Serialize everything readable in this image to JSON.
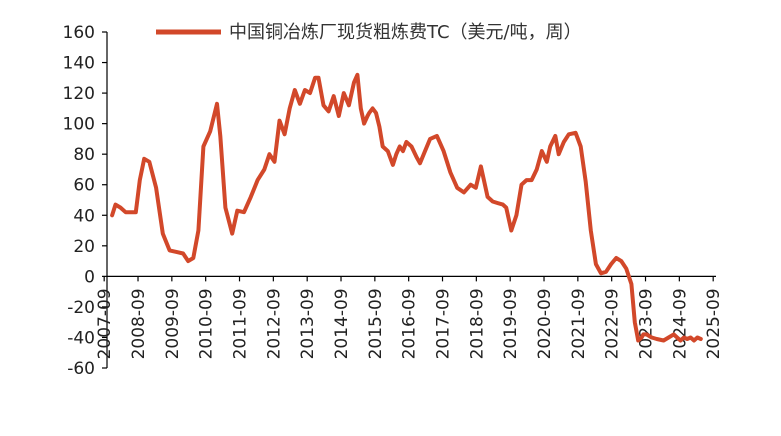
{
  "chart_data": {
    "type": "line",
    "legend": {
      "label": "中国铜冶炼厂现货粗炼费TC（美元/吨，周）",
      "position": "top"
    },
    "series": [
      {
        "name": "中国铜冶炼厂现货粗炼费TC（美元/吨，周）",
        "color": "#d2482a",
        "x": [
          2007.9,
          2008.0,
          2008.15,
          2008.3,
          2008.5,
          2008.6,
          2008.72,
          2008.85,
          2009.0,
          2009.2,
          2009.4,
          2009.6,
          2009.8,
          2010.0,
          2010.15,
          2010.3,
          2010.45,
          2010.6,
          2010.8,
          2011.0,
          2011.1,
          2011.25,
          2011.45,
          2011.6,
          2011.8,
          2012.0,
          2012.2,
          2012.4,
          2012.55,
          2012.7,
          2012.85,
          2013.0,
          2013.15,
          2013.3,
          2013.45,
          2013.6,
          2013.75,
          2013.9,
          2014.0,
          2014.15,
          2014.3,
          2014.45,
          2014.6,
          2014.75,
          2014.9,
          2015.05,
          2015.15,
          2015.25,
          2015.35,
          2015.45,
          2015.5,
          2015.6,
          2015.7,
          2015.8,
          2015.9,
          2016.05,
          2016.2,
          2016.3,
          2016.4,
          2016.5,
          2016.6,
          2016.75,
          2016.9,
          2017.0,
          2017.15,
          2017.3,
          2017.5,
          2017.7,
          2017.9,
          2018.1,
          2018.3,
          2018.5,
          2018.65,
          2018.8,
          2019.0,
          2019.15,
          2019.3,
          2019.45,
          2019.55,
          2019.7,
          2019.85,
          2020.0,
          2020.15,
          2020.3,
          2020.45,
          2020.6,
          2020.75,
          2020.85,
          2021.0,
          2021.1,
          2021.25,
          2021.4,
          2021.6,
          2021.75,
          2021.9,
          2022.05,
          2022.2,
          2022.35,
          2022.5,
          2022.65,
          2022.8,
          2022.95,
          2023.1,
          2023.25,
          2023.35,
          2023.45,
          2023.55,
          2023.6,
          2023.7,
          2023.85,
          2024.0,
          2024.2,
          2024.35,
          2024.5,
          2024.6,
          2024.7,
          2024.8,
          2024.9,
          2025.0,
          2025.1,
          2025.2,
          2025.3
        ],
        "values": [
          40,
          47,
          45,
          42,
          42,
          42,
          63,
          77,
          75,
          58,
          28,
          17,
          16,
          15,
          10,
          12,
          30,
          85,
          95,
          113,
          92,
          45,
          28,
          43,
          42,
          52,
          63,
          70,
          80,
          75,
          102,
          93,
          110,
          122,
          113,
          122,
          120,
          130,
          130,
          112,
          108,
          118,
          105,
          120,
          112,
          127,
          132,
          110,
          100,
          105,
          107,
          110,
          107,
          98,
          85,
          82,
          73,
          80,
          85,
          82,
          88,
          85,
          78,
          74,
          82,
          90,
          92,
          82,
          68,
          58,
          55,
          60,
          58,
          72,
          52,
          49,
          48,
          47,
          45,
          30,
          40,
          60,
          63,
          63,
          70,
          82,
          75,
          85,
          92,
          80,
          88,
          93,
          94,
          85,
          62,
          30,
          8,
          2,
          3,
          8,
          12,
          10,
          5,
          -5,
          -30,
          -42,
          -40,
          -38,
          -38,
          -40,
          -41,
          -42,
          -40,
          -38,
          -40,
          -42,
          -40,
          -41,
          -40,
          -42,
          -40,
          -41
        ],
        "raw_note": ""
      }
    ],
    "y_axis": {
      "min": -60,
      "max": 160,
      "ticks": [
        "160",
        "140",
        "120",
        "100",
        "80",
        "60",
        "40",
        "20",
        "0",
        "-20",
        "-40",
        "-60"
      ]
    },
    "x_axis": {
      "range": [
        2007.75,
        2025.75
      ],
      "tick_labels": [
        "2007-09",
        "2008-09",
        "2009-09",
        "2010-09",
        "2011-09",
        "2012-09",
        "2013-09",
        "2014-09",
        "2015-09",
        "2016-09",
        "2017-09",
        "2018-09",
        "2019-09",
        "2020-09",
        "2021-09",
        "2022-09",
        "2023-09",
        "2024-09",
        "2025-09"
      ]
    },
    "grid": false
  }
}
